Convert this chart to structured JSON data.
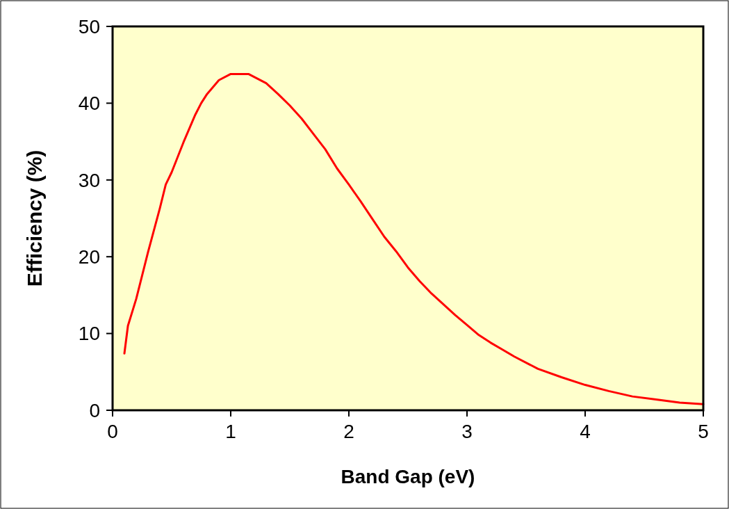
{
  "chart_data": {
    "type": "line",
    "xlabel": "Band Gap (eV)",
    "ylabel": "Efficiency (%)",
    "xlim": [
      0,
      5
    ],
    "ylim": [
      0,
      50
    ],
    "xticks": [
      0,
      1,
      2,
      3,
      4,
      5
    ],
    "yticks": [
      0,
      10,
      20,
      30,
      40,
      50
    ],
    "grid": false,
    "marker": "none",
    "line_style": "solid",
    "series": [
      {
        "color": "#ff0000",
        "x": [
          0.1,
          0.13,
          0.2,
          0.3,
          0.4,
          0.45,
          0.5,
          0.6,
          0.7,
          0.75,
          0.8,
          0.9,
          1.0,
          1.15,
          1.3,
          1.4,
          1.5,
          1.6,
          1.7,
          1.8,
          1.9,
          2.0,
          2.1,
          2.2,
          2.3,
          2.4,
          2.5,
          2.6,
          2.7,
          2.8,
          2.9,
          3.0,
          3.1,
          3.2,
          3.3,
          3.4,
          3.6,
          3.8,
          4.0,
          4.2,
          4.4,
          4.6,
          4.8,
          5.0
        ],
        "values": [
          7.4,
          11,
          14.5,
          20.6,
          26.3,
          29.4,
          31,
          34.9,
          38.5,
          40,
          41.2,
          43,
          43.8,
          43.8,
          42.6,
          41.2,
          39.7,
          38,
          36,
          34,
          31.5,
          29.4,
          27.2,
          24.9,
          22.6,
          20.7,
          18.6,
          16.8,
          15.2,
          13.8,
          12.4,
          11.1,
          9.8,
          8.8,
          7.9,
          7,
          5.4,
          4.3,
          3.3,
          2.5,
          1.8,
          1.4,
          1.0,
          0.8
        ]
      }
    ]
  }
}
